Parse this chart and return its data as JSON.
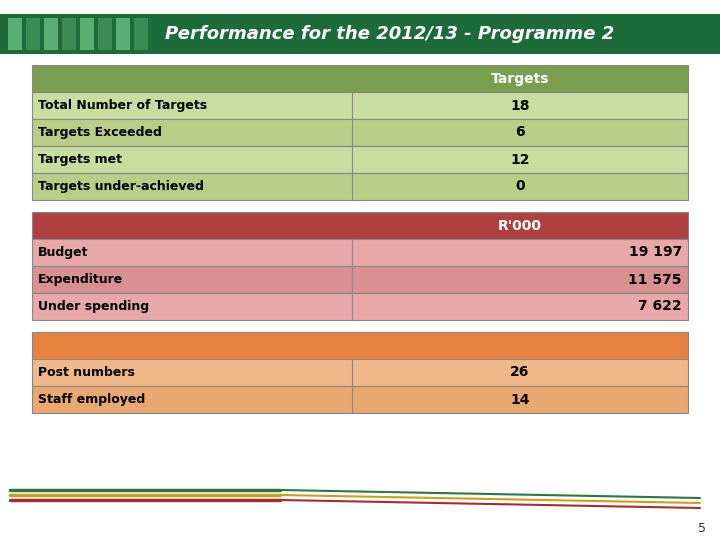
{
  "title": "Performance for the 2012/13 - Programme 2",
  "title_bg": "#1e6b3a",
  "title_color": "#ffffff",
  "sq_colors": [
    "#4a9e64",
    "#3d8a55",
    "#5aae74",
    "#2d7845",
    "#4a9e64",
    "#3d8a55",
    "#5aae74",
    "#2d7845"
  ],
  "green_header_bg": "#7a9e4e",
  "green_header_text": "Targets",
  "green_header_text_color": "#ffffff",
  "green_rows": [
    {
      "label": "Total Number of Targets",
      "value": "18"
    },
    {
      "label": "Targets Exceeded",
      "value": "6"
    },
    {
      "label": "Targets met",
      "value": "12"
    },
    {
      "label": "Targets under-achieved",
      "value": "0"
    }
  ],
  "green_row_bg_light": "#c8dea0",
  "green_row_bg_dark": "#b8ce88",
  "green_row_text": "#000000",
  "red_header_bg": "#b04040",
  "red_header_text": "R'000",
  "red_header_text_color": "#ffffff",
  "red_rows": [
    {
      "label": "Budget",
      "value": "19 197"
    },
    {
      "label": "Expenditure",
      "value": "11 575"
    },
    {
      "label": "Under spending",
      "value": "7 622"
    }
  ],
  "red_row_bg_light": "#e8a8a8",
  "red_row_bg_dark": "#d89090",
  "red_row_text": "#000000",
  "orange_header_bg": "#e88040",
  "orange_rows": [
    {
      "label": "Post numbers",
      "value": "26"
    },
    {
      "label": "Staff employed",
      "value": "14"
    }
  ],
  "orange_row_bg_light": "#f0b888",
  "orange_row_bg_dark": "#e8a870",
  "orange_row_text": "#000000",
  "bg_color": "#ffffff",
  "page_number": "5",
  "border_color": "#888888"
}
